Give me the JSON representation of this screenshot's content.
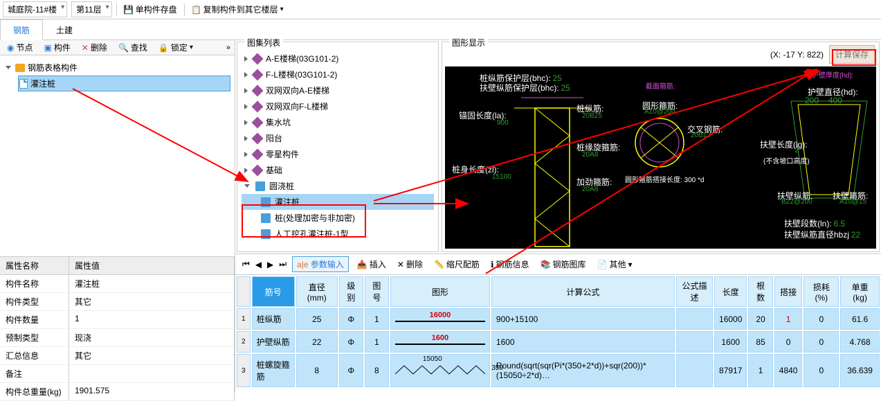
{
  "toolbar": {
    "building": "城庭院-11#楼",
    "floor": "第11层",
    "save_single": "单构件存盘",
    "copy_to": "复制构件到其它楼层"
  },
  "tabs": {
    "steel": "钢筋",
    "civil": "土建"
  },
  "left_tb": {
    "node": "节点",
    "component": "构件",
    "delete": "删除",
    "find": "查找",
    "lock": "锁定"
  },
  "tree": {
    "root": "钢筋表格构件",
    "child": "灌注桩"
  },
  "atlas": {
    "title": "图集列表",
    "items": [
      {
        "label": "A-E楼梯(03G101-2)",
        "icon": "purple"
      },
      {
        "label": "F-L楼梯(03G101-2)",
        "icon": "purple"
      },
      {
        "label": "双网双向A-E楼梯",
        "icon": "purple"
      },
      {
        "label": "双网双向F-L楼梯",
        "icon": "purple"
      },
      {
        "label": "集水坑",
        "icon": "purple"
      },
      {
        "label": "阳台",
        "icon": "purple"
      },
      {
        "label": "零星构件",
        "icon": "purple"
      },
      {
        "label": "基础",
        "icon": "purple"
      },
      {
        "label": "圆浇桩",
        "icon": "book",
        "open": true
      },
      {
        "label": "灌注桩",
        "icon": "book",
        "sel": true,
        "indent": true
      },
      {
        "label": "桩(处理加密与非加密)",
        "icon": "book",
        "indent": true
      },
      {
        "label": "人工挖孔灌注桩-1型",
        "icon": "book",
        "indent": true
      }
    ]
  },
  "graphic": {
    "title": "图形显示",
    "coord": "(X: -17 Y: 822)",
    "calc": "计算保存",
    "labels": {
      "l1": "桩纵筋保护层(bhc):",
      "v1": "25",
      "l2": "扶壁纵筋保护层(bhc):",
      "v2": "25",
      "l3": "锚固长度(la):",
      "v3": "900",
      "l4": "桩身长度(zl):",
      "v4": "15100",
      "l5": "桩纵筋:",
      "v5": "20B25",
      "l6": "桩缘旋箍筋:",
      "v6": "20A8",
      "l7": "加劲箍筋:",
      "v7": "20A8",
      "l8": "截面箍筋:",
      "l9": "圆形箍筋:",
      "v9": "A10@200",
      "l10": "交叉钢筋:",
      "v10": "20B12",
      "l11": "圆形箍筋搭接长度: 300 *d",
      "l12": "护壁直径(hd):",
      "v12a": "200",
      "v12b": "400",
      "l13": "扶壁长度(lg):",
      "v13": "2",
      "v13b": "(不含坡口高度)",
      "l14": "扶壁纵筋:",
      "v14": "B22@200",
      "l15": "扶壁箍筋:",
      "v15": "A10@15",
      "l16": "扶壁段数(ln):",
      "v16": "6.5",
      "l17": "扶壁纵筋直径hbzj",
      "v17": "22",
      "l18": "护壁厚度(hd):"
    }
  },
  "props": {
    "h1": "属性名称",
    "h2": "属性值",
    "rows": [
      [
        "构件名称",
        "灌注桩"
      ],
      [
        "构件类型",
        "其它"
      ],
      [
        "构件数量",
        "1"
      ],
      [
        "预制类型",
        "现浇"
      ],
      [
        "汇总信息",
        "其它"
      ],
      [
        "备注",
        ""
      ],
      [
        "构件总重量(kg)",
        "1901.575"
      ]
    ]
  },
  "lower_tb": {
    "param": "参数输入",
    "insert": "插入",
    "delete": "删除",
    "scale": "缩尺配筋",
    "info": "钢筋信息",
    "lib": "钢筋图库",
    "other": "其他"
  },
  "grid": {
    "cols": [
      "筋号",
      "直径(mm)",
      "级别",
      "图号",
      "图形",
      "计算公式",
      "公式描述",
      "长度",
      "根数",
      "搭接",
      "损耗(%)",
      "单重(kg)"
    ],
    "rows": [
      {
        "n": "1",
        "name": "桩纵筋",
        "d": "25",
        "lv": "Φ",
        "fig": "1",
        "shape": "16000",
        "formula": "900+15100",
        "desc": "",
        "len": "16000",
        "cnt": "20",
        "lap": "1",
        "loss": "0",
        "wt": "61.6",
        "lapred": true
      },
      {
        "n": "2",
        "name": "护壁纵筋",
        "d": "22",
        "lv": "Φ",
        "fig": "1",
        "shape": "1600",
        "formula": "1600",
        "desc": "",
        "len": "1600",
        "cnt": "85",
        "lap": "0",
        "loss": "0",
        "wt": "4.768"
      },
      {
        "n": "3",
        "name": "桩螺旋箍筋",
        "d": "8",
        "lv": "Φ",
        "fig": "8",
        "shape": "zigzag",
        "shapetop": "15050",
        "shaperight": "350",
        "formula": "Round(sqrt(sqr(Pi*(350+2*d))+sqr(200))*(15050÷2*d)…",
        "desc": "",
        "len": "87917",
        "cnt": "1",
        "lap": "4840",
        "loss": "0",
        "wt": "36.639"
      }
    ]
  }
}
